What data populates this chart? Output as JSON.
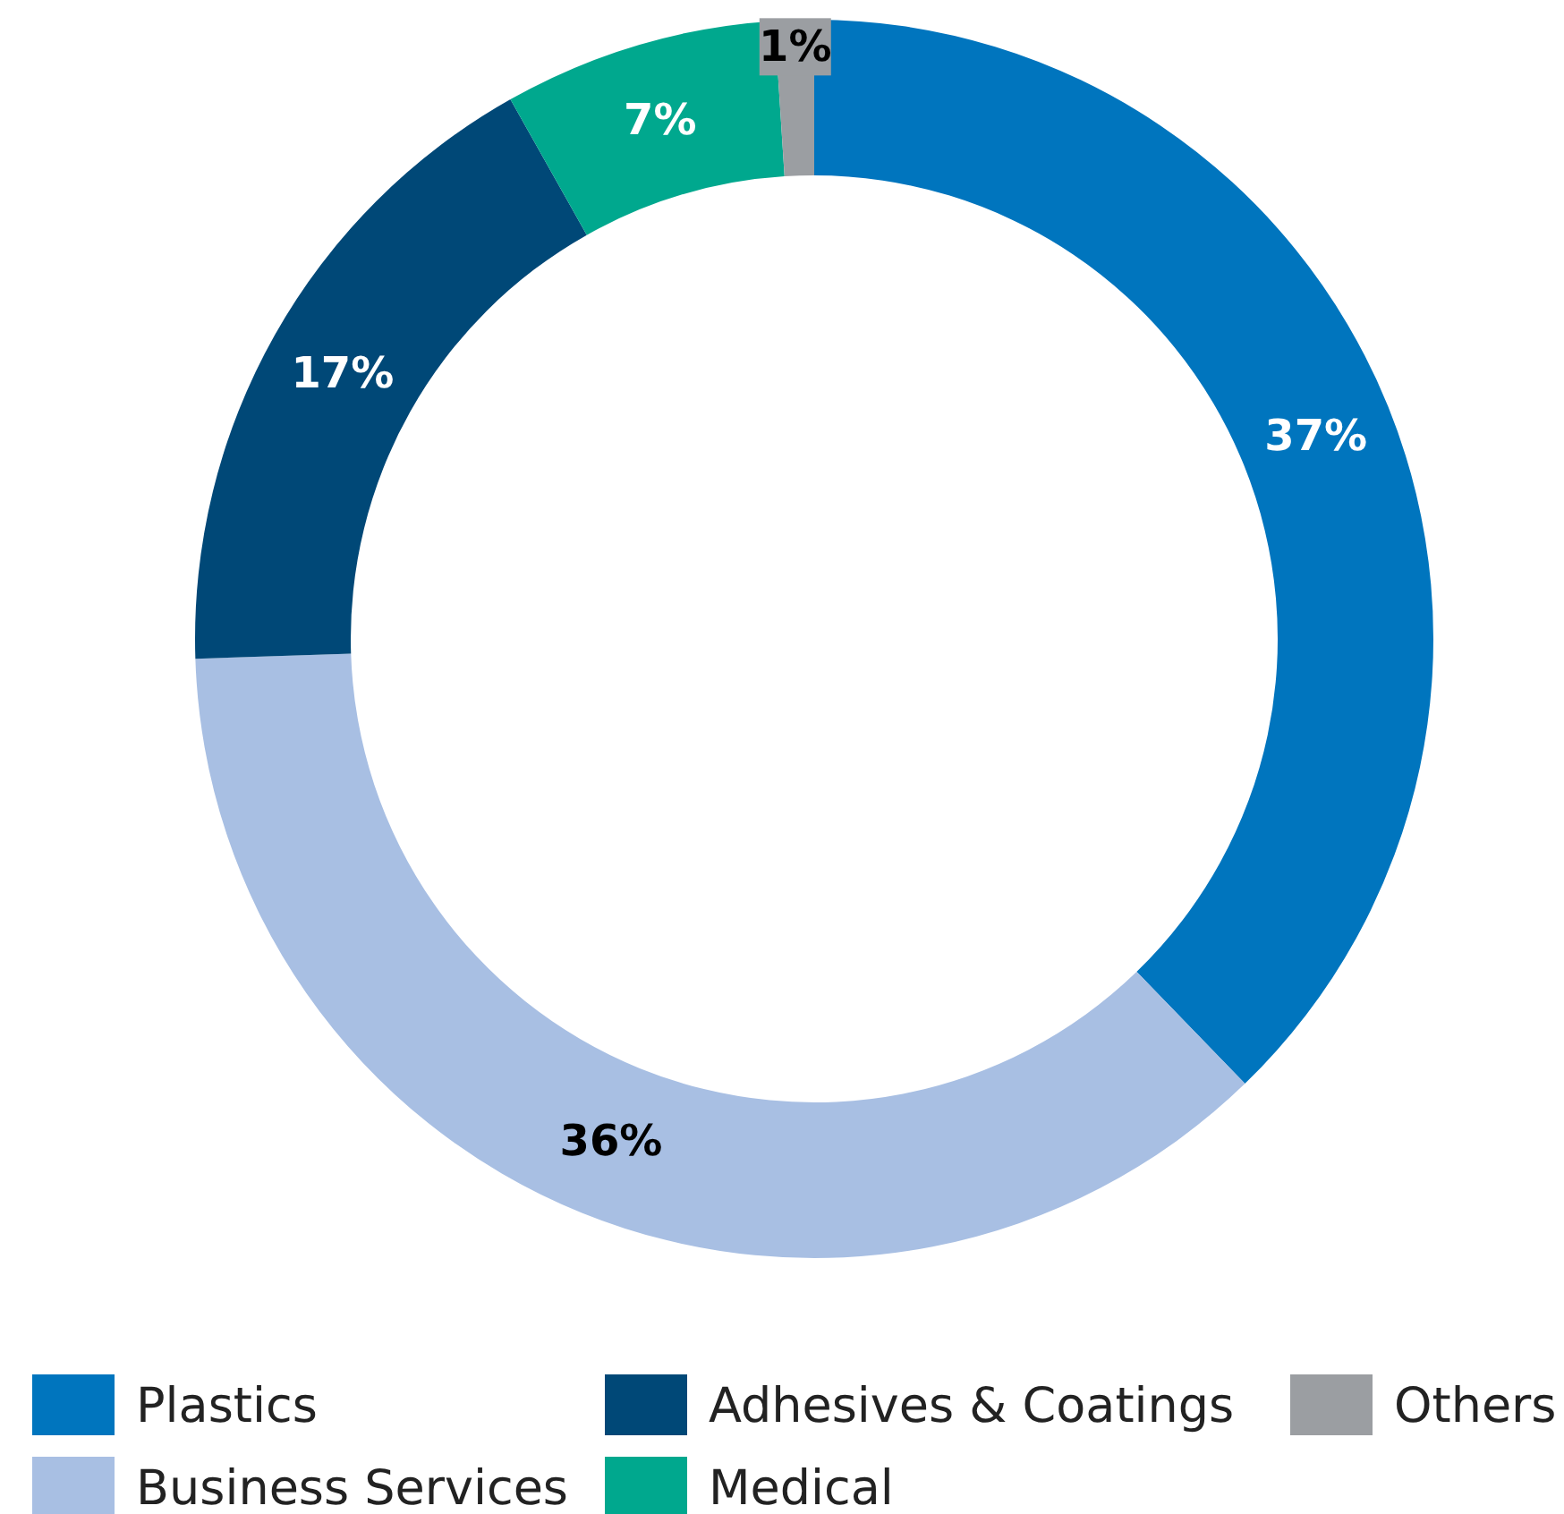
{
  "chart_data": {
    "type": "donut",
    "categories": [
      "Plastics",
      "Business Services",
      "Adhesives & Coatings",
      "Medical",
      "Others"
    ],
    "values": [
      37,
      36,
      17,
      7,
      1
    ],
    "value_labels": [
      "37%",
      "36%",
      "17%",
      "7%",
      "1%"
    ],
    "colors": [
      "#0075be",
      "#a8bfe3",
      "#004877",
      "#00a88e",
      "#9b9ea2"
    ],
    "legend": "bottom"
  }
}
